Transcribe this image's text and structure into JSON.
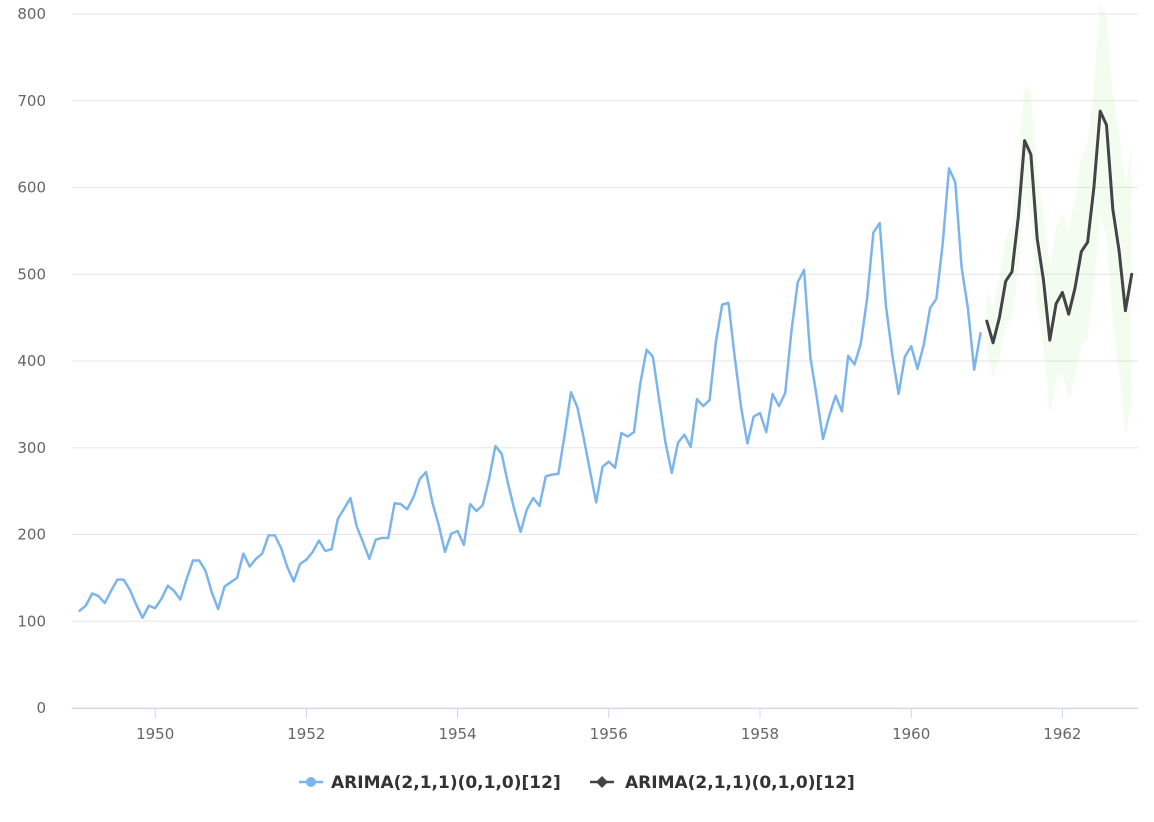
{
  "chart_data": {
    "type": "line",
    "title": "",
    "xlabel": "",
    "ylabel": "",
    "xlim": [
      1948.9,
      1963.0
    ],
    "ylim": [
      0,
      800
    ],
    "y_ticks": [
      0,
      100,
      200,
      300,
      400,
      500,
      600,
      700,
      800
    ],
    "x_ticks": [
      1950,
      1952,
      1954,
      1956,
      1958,
      1960,
      1962
    ],
    "grid": "horizontal",
    "legend_position": "bottom-center",
    "series": [
      {
        "name": "ARIMA(2,1,1)(0,1,0)[12]",
        "color": "#7cb5ec",
        "marker": "circle",
        "x_start": 1949.0,
        "x_step": 0.0833333,
        "values": [
          112,
          118,
          132,
          129,
          121,
          135,
          148,
          148,
          136,
          119,
          104,
          118,
          115,
          126,
          141,
          135,
          125,
          149,
          170,
          170,
          158,
          133,
          114,
          140,
          145,
          150,
          178,
          163,
          172,
          178,
          199,
          199,
          184,
          162,
          146,
          166,
          171,
          180,
          193,
          181,
          183,
          218,
          230,
          242,
          209,
          191,
          172,
          194,
          196,
          196,
          236,
          235,
          229,
          243,
          264,
          272,
          237,
          211,
          180,
          201,
          204,
          188,
          235,
          227,
          234,
          264,
          302,
          293,
          259,
          229,
          203,
          229,
          242,
          233,
          267,
          269,
          270,
          315,
          364,
          347,
          312,
          274,
          237,
          278,
          284,
          277,
          317,
          313,
          318,
          374,
          413,
          405,
          355,
          306,
          271,
          306,
          315,
          301,
          356,
          348,
          355,
          422,
          465,
          467,
          404,
          347,
          305,
          336,
          340,
          318,
          362,
          348,
          363,
          435,
          491,
          505,
          404,
          359,
          310,
          337,
          360,
          342,
          406,
          396,
          420,
          472,
          548,
          559,
          463,
          407,
          362,
          405,
          417,
          391,
          419,
          461,
          472,
          535,
          622,
          606,
          508,
          461,
          390,
          432
        ]
      },
      {
        "name": "ARIMA(2,1,1)(0,1,0)[12]",
        "color": "#434348",
        "marker": "diamond",
        "x_start": 1961.0,
        "x_step": 0.0833333,
        "values": [
          446,
          421,
          450,
          492,
          503,
          566,
          654,
          638,
          541,
          493,
          424,
          466,
          479,
          454,
          484,
          526,
          537,
          600,
          688,
          672,
          575,
          527,
          458,
          500
        ],
        "band_lower": [
          410,
          381,
          405,
          442,
          448,
          506,
          589,
          568,
          466,
          413,
          340,
          378,
          387,
          357,
          382,
          419,
          425,
          483,
          566,
          545,
          443,
          390,
          316,
          353
        ],
        "band_upper": [
          482,
          461,
          495,
          542,
          558,
          626,
          719,
          708,
          616,
          573,
          508,
          554,
          571,
          551,
          586,
          633,
          649,
          717,
          810,
          799,
          707,
          664,
          600,
          647
        ],
        "band_color": "#90ed7d"
      }
    ]
  }
}
